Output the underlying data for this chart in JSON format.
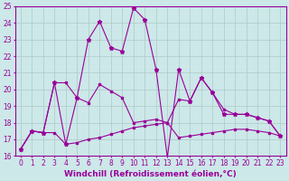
{
  "xlabel": "Windchill (Refroidissement éolien,°C)",
  "bg_color": "#cce8e8",
  "line_color": "#990099",
  "grid_color": "#b0c8c8",
  "xlim": [
    -0.5,
    23.5
  ],
  "ylim": [
    16,
    25
  ],
  "xticks": [
    0,
    1,
    2,
    3,
    4,
    5,
    6,
    7,
    8,
    9,
    10,
    11,
    12,
    13,
    14,
    15,
    16,
    17,
    18,
    19,
    20,
    21,
    22,
    23
  ],
  "yticks": [
    16,
    17,
    18,
    19,
    20,
    21,
    22,
    23,
    24,
    25
  ],
  "line1_x": [
    0,
    1,
    2,
    3,
    4,
    5,
    6,
    7,
    8,
    9,
    10,
    11,
    12,
    13,
    14,
    15,
    16,
    17,
    18,
    19,
    20,
    21,
    22,
    23
  ],
  "line1_y": [
    16.4,
    17.5,
    17.4,
    17.4,
    16.7,
    16.8,
    17.0,
    17.1,
    17.3,
    17.5,
    17.7,
    17.8,
    17.9,
    18.0,
    17.1,
    17.2,
    17.3,
    17.4,
    17.5,
    17.6,
    17.6,
    17.5,
    17.4,
    17.2
  ],
  "line2_x": [
    0,
    1,
    2,
    3,
    4,
    5,
    6,
    7,
    8,
    9,
    10,
    11,
    12,
    13,
    14,
    15,
    16,
    17,
    18,
    19,
    20,
    21,
    22,
    23
  ],
  "line2_y": [
    16.4,
    17.5,
    17.4,
    20.4,
    20.4,
    19.5,
    19.2,
    20.3,
    19.9,
    19.5,
    18.0,
    18.1,
    18.2,
    18.0,
    19.4,
    19.3,
    20.7,
    19.8,
    18.8,
    18.5,
    18.5,
    18.3,
    18.1,
    17.2
  ],
  "line3_x": [
    0,
    1,
    2,
    3,
    4,
    5,
    6,
    7,
    8,
    9,
    10,
    11,
    12,
    13,
    14,
    15,
    16,
    17,
    18,
    19,
    20,
    21,
    22,
    23
  ],
  "line3_y": [
    16.4,
    17.5,
    17.4,
    20.4,
    16.7,
    19.5,
    23.0,
    24.1,
    22.5,
    22.3,
    24.9,
    24.2,
    21.2,
    15.9,
    21.2,
    19.3,
    20.7,
    19.8,
    18.5,
    18.5,
    18.5,
    18.3,
    18.1,
    17.2
  ],
  "xlabel_fontsize": 6.5,
  "tick_fontsize": 5.5
}
